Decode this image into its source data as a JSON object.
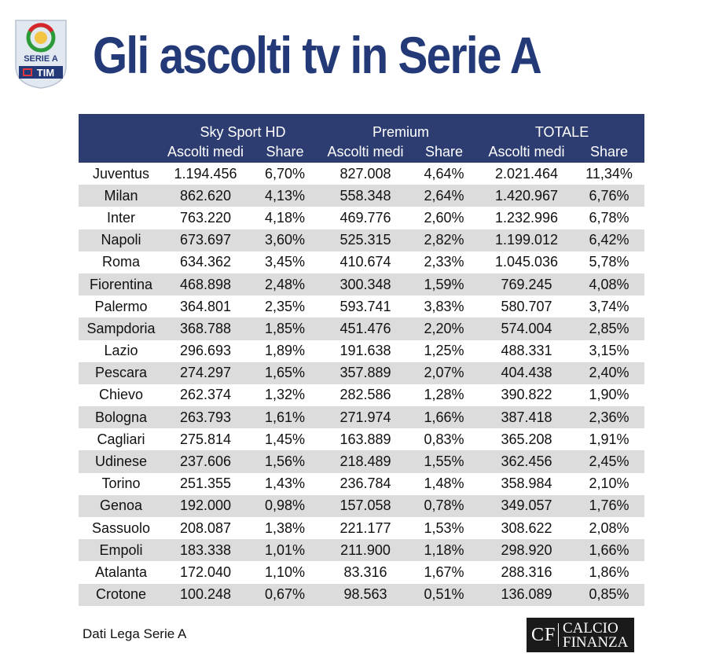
{
  "header": {
    "title": "Gli ascolti tv in Serie A",
    "logo": {
      "name": "serie-a-tim-logo",
      "text_top": "SERIE A",
      "text_bottom": "TIM",
      "colors": {
        "shield": "#e2e8f0",
        "tim_band": "#243a78",
        "ring_green": "#2e9b3a",
        "ring_red": "#d7262b"
      }
    }
  },
  "colors": {
    "title": "#243a78",
    "header_bg": "#2d3d72",
    "stripe": "#dcdcdc"
  },
  "chart_data": {
    "type": "table",
    "title": "Gli ascolti tv in Serie A",
    "column_groups": [
      "Sky Sport HD",
      "Premium",
      "TOTALE"
    ],
    "subcolumns": [
      "Ascolti medi",
      "Share"
    ],
    "rows": [
      {
        "team": "Juventus",
        "sky_ascolti": "1.194.456",
        "sky_share": "6,70%",
        "premium_ascolti": "827.008",
        "premium_share": "4,64%",
        "totale_ascolti": "2.021.464",
        "totale_share": "11,34%"
      },
      {
        "team": "Milan",
        "sky_ascolti": "862.620",
        "sky_share": "4,13%",
        "premium_ascolti": "558.348",
        "premium_share": "2,64%",
        "totale_ascolti": "1.420.967",
        "totale_share": "6,76%"
      },
      {
        "team": "Inter",
        "sky_ascolti": "763.220",
        "sky_share": "4,18%",
        "premium_ascolti": "469.776",
        "premium_share": "2,60%",
        "totale_ascolti": "1.232.996",
        "totale_share": "6,78%"
      },
      {
        "team": "Napoli",
        "sky_ascolti": "673.697",
        "sky_share": "3,60%",
        "premium_ascolti": "525.315",
        "premium_share": "2,82%",
        "totale_ascolti": "1.199.012",
        "totale_share": "6,42%"
      },
      {
        "team": "Roma",
        "sky_ascolti": "634.362",
        "sky_share": "3,45%",
        "premium_ascolti": "410.674",
        "premium_share": "2,33%",
        "totale_ascolti": "1.045.036",
        "totale_share": "5,78%"
      },
      {
        "team": "Fiorentina",
        "sky_ascolti": "468.898",
        "sky_share": "2,48%",
        "premium_ascolti": "300.348",
        "premium_share": "1,59%",
        "totale_ascolti": "769.245",
        "totale_share": "4,08%"
      },
      {
        "team": "Palermo",
        "sky_ascolti": "364.801",
        "sky_share": "2,35%",
        "premium_ascolti": "593.741",
        "premium_share": "3,83%",
        "totale_ascolti": "580.707",
        "totale_share": "3,74%"
      },
      {
        "team": "Sampdoria",
        "sky_ascolti": "368.788",
        "sky_share": "1,85%",
        "premium_ascolti": "451.476",
        "premium_share": "2,20%",
        "totale_ascolti": "574.004",
        "totale_share": "2,85%"
      },
      {
        "team": "Lazio",
        "sky_ascolti": "296.693",
        "sky_share": "1,89%",
        "premium_ascolti": "191.638",
        "premium_share": "1,25%",
        "totale_ascolti": "488.331",
        "totale_share": "3,15%"
      },
      {
        "team": "Pescara",
        "sky_ascolti": "274.297",
        "sky_share": "1,65%",
        "premium_ascolti": "357.889",
        "premium_share": "2,07%",
        "totale_ascolti": "404.438",
        "totale_share": "2,40%"
      },
      {
        "team": "Chievo",
        "sky_ascolti": "262.374",
        "sky_share": "1,32%",
        "premium_ascolti": "282.586",
        "premium_share": "1,28%",
        "totale_ascolti": "390.822",
        "totale_share": "1,90%"
      },
      {
        "team": "Bologna",
        "sky_ascolti": "263.793",
        "sky_share": "1,61%",
        "premium_ascolti": "271.974",
        "premium_share": "1,66%",
        "totale_ascolti": "387.418",
        "totale_share": "2,36%"
      },
      {
        "team": "Cagliari",
        "sky_ascolti": "275.814",
        "sky_share": "1,45%",
        "premium_ascolti": "163.889",
        "premium_share": "0,83%",
        "totale_ascolti": "365.208",
        "totale_share": "1,91%"
      },
      {
        "team": "Udinese",
        "sky_ascolti": "237.606",
        "sky_share": "1,56%",
        "premium_ascolti": "218.489",
        "premium_share": "1,55%",
        "totale_ascolti": "362.456",
        "totale_share": "2,45%"
      },
      {
        "team": "Torino",
        "sky_ascolti": "251.355",
        "sky_share": "1,43%",
        "premium_ascolti": "236.784",
        "premium_share": "1,48%",
        "totale_ascolti": "358.984",
        "totale_share": "2,10%"
      },
      {
        "team": "Genoa",
        "sky_ascolti": "192.000",
        "sky_share": "0,98%",
        "premium_ascolti": "157.058",
        "premium_share": "0,78%",
        "totale_ascolti": "349.057",
        "totale_share": "1,76%"
      },
      {
        "team": "Sassuolo",
        "sky_ascolti": "208.087",
        "sky_share": "1,38%",
        "premium_ascolti": "221.177",
        "premium_share": "1,53%",
        "totale_ascolti": "308.622",
        "totale_share": "2,08%"
      },
      {
        "team": "Empoli",
        "sky_ascolti": "183.338",
        "sky_share": "1,01%",
        "premium_ascolti": "211.900",
        "premium_share": "1,18%",
        "totale_ascolti": "298.920",
        "totale_share": "1,66%"
      },
      {
        "team": "Atalanta",
        "sky_ascolti": "172.040",
        "sky_share": "1,10%",
        "premium_ascolti": "83.316",
        "premium_share": "1,67%",
        "totale_ascolti": "288.316",
        "totale_share": "1,86%"
      },
      {
        "team": "Crotone",
        "sky_ascolti": "100.248",
        "sky_share": "0,67%",
        "premium_ascolti": "98.563",
        "premium_share": "0,51%",
        "totale_ascolti": "136.089",
        "totale_share": "0,85%"
      }
    ]
  },
  "footer": {
    "source": "Dati Lega Serie A",
    "brand": {
      "monogram": "CF",
      "word1": "CALCIO",
      "word2": "FINANZA"
    }
  }
}
